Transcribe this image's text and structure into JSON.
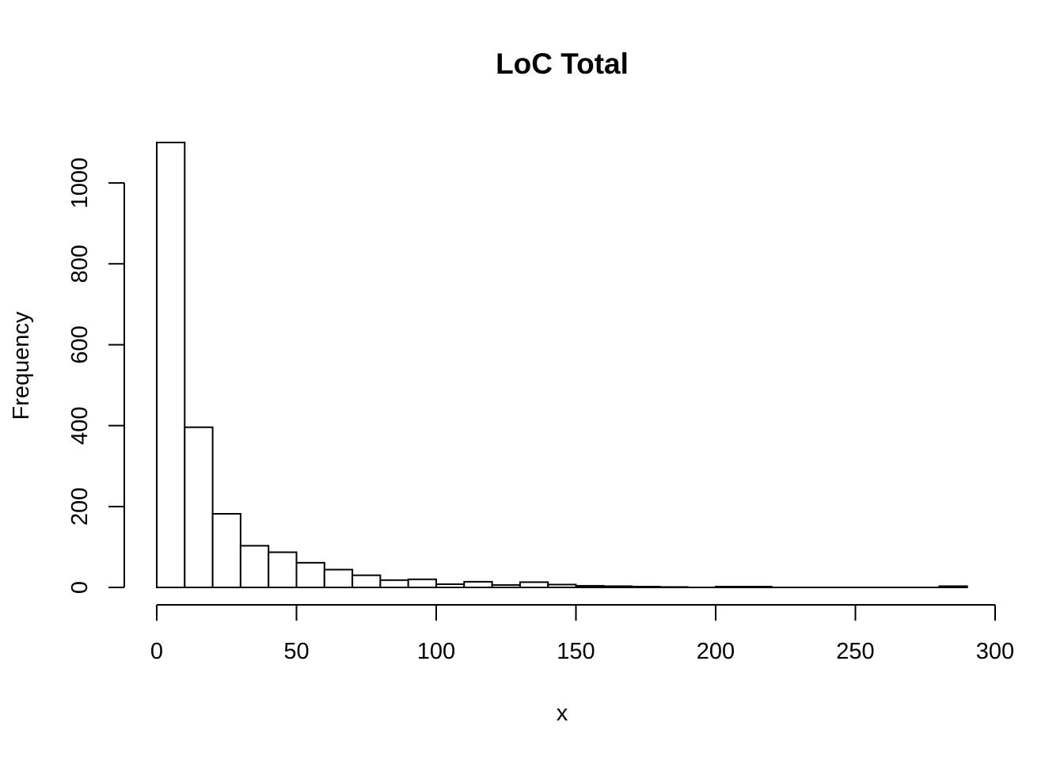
{
  "chart_data": {
    "type": "bar",
    "title": "LoC Total",
    "xlabel": "x",
    "ylabel": "Frequency",
    "bin_width": 10,
    "bins": [
      [
        0,
        10
      ],
      [
        10,
        20
      ],
      [
        20,
        30
      ],
      [
        30,
        40
      ],
      [
        40,
        50
      ],
      [
        50,
        60
      ],
      [
        60,
        70
      ],
      [
        70,
        80
      ],
      [
        80,
        90
      ],
      [
        90,
        100
      ],
      [
        100,
        110
      ],
      [
        110,
        120
      ],
      [
        120,
        130
      ],
      [
        130,
        140
      ],
      [
        140,
        150
      ],
      [
        150,
        160
      ],
      [
        160,
        170
      ],
      [
        170,
        180
      ],
      [
        180,
        190
      ],
      [
        190,
        200
      ],
      [
        200,
        210
      ],
      [
        210,
        220
      ],
      [
        220,
        230
      ],
      [
        230,
        240
      ],
      [
        240,
        250
      ],
      [
        250,
        260
      ],
      [
        260,
        270
      ],
      [
        270,
        280
      ],
      [
        280,
        290
      ]
    ],
    "values": [
      1100,
      396,
      182,
      103,
      87,
      61,
      44,
      30,
      18,
      20,
      8,
      14,
      6,
      13,
      7,
      4,
      3,
      2,
      1,
      0,
      2,
      2,
      0,
      0,
      0,
      0,
      0,
      0,
      3
    ],
    "xlim": [
      0,
      300
    ],
    "ylim": [
      0,
      1100
    ],
    "xticks": [
      0,
      50,
      100,
      150,
      200,
      250,
      300
    ],
    "xtick_labels": [
      "0",
      "50",
      "100",
      "150",
      "200",
      "250",
      "300"
    ],
    "yticks": [
      0,
      200,
      400,
      600,
      800,
      1000
    ],
    "ytick_labels": [
      "0",
      "200",
      "400",
      "600",
      "800",
      "1000"
    ],
    "grid": false,
    "legend": "none"
  }
}
